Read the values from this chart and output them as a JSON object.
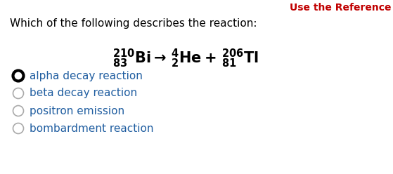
{
  "title_text": "Use the Reference",
  "title_color": "#c00000",
  "question_text": "Which of the following describes the reaction:",
  "question_color": "#000000",
  "equation_color": "#000000",
  "options": [
    "alpha decay reaction",
    "beta decay reaction",
    "positron emission",
    "bombardment reaction"
  ],
  "options_color": "#1f5da0",
  "selected_index": 0,
  "background_color": "#ffffff",
  "fig_width": 5.59,
  "fig_height": 2.48,
  "dpi": 100
}
